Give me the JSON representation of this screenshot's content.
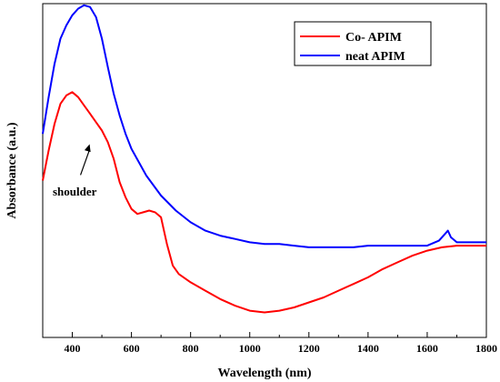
{
  "chart_data": {
    "type": "line",
    "title": "",
    "xlabel": "Wavelength (nm)",
    "ylabel": "Absorbance (a.u.)",
    "xlim": [
      300,
      1800
    ],
    "ylim": [
      0,
      1
    ],
    "x_ticks": [
      400,
      600,
      800,
      1000,
      1200,
      1400,
      1600,
      1800
    ],
    "x_tick_labels": [
      "400",
      "600",
      "800",
      "1000",
      "1200",
      "1400",
      "1600",
      "1800"
    ],
    "y_tick_labels_shown": false,
    "grid": false,
    "legend": {
      "position": "top-right"
    },
    "annotation": {
      "text": "shoulder",
      "arrow_target": [
        480,
        0.59
      ]
    },
    "series": [
      {
        "name": "Co- APIM",
        "color": "#ff0000",
        "x": [
          300,
          320,
          340,
          360,
          380,
          400,
          420,
          440,
          460,
          480,
          500,
          520,
          540,
          560,
          580,
          600,
          620,
          640,
          660,
          680,
          700,
          720,
          740,
          760,
          800,
          850,
          900,
          950,
          1000,
          1050,
          1100,
          1150,
          1200,
          1250,
          1300,
          1350,
          1400,
          1450,
          1500,
          1550,
          1600,
          1650,
          1700,
          1750,
          1800
        ],
        "y": [
          0.47,
          0.56,
          0.64,
          0.7,
          0.725,
          0.735,
          0.72,
          0.695,
          0.67,
          0.645,
          0.62,
          0.585,
          0.535,
          0.465,
          0.42,
          0.385,
          0.37,
          0.375,
          0.38,
          0.375,
          0.36,
          0.28,
          0.215,
          0.19,
          0.165,
          0.14,
          0.115,
          0.095,
          0.08,
          0.075,
          0.08,
          0.09,
          0.105,
          0.12,
          0.14,
          0.16,
          0.18,
          0.205,
          0.225,
          0.245,
          0.26,
          0.27,
          0.275,
          0.275,
          0.275
        ]
      },
      {
        "name": "neat APIM",
        "color": "#0000ff",
        "x": [
          300,
          320,
          340,
          360,
          380,
          400,
          420,
          440,
          460,
          480,
          500,
          520,
          540,
          560,
          580,
          600,
          650,
          700,
          750,
          800,
          850,
          900,
          950,
          1000,
          1050,
          1100,
          1150,
          1200,
          1250,
          1300,
          1350,
          1400,
          1450,
          1500,
          1550,
          1600,
          1640,
          1660,
          1670,
          1680,
          1700,
          1750,
          1800
        ],
        "y": [
          0.61,
          0.72,
          0.82,
          0.895,
          0.935,
          0.965,
          0.985,
          0.995,
          0.99,
          0.96,
          0.895,
          0.81,
          0.73,
          0.665,
          0.61,
          0.565,
          0.485,
          0.425,
          0.38,
          0.345,
          0.32,
          0.305,
          0.295,
          0.285,
          0.28,
          0.28,
          0.275,
          0.27,
          0.27,
          0.27,
          0.27,
          0.275,
          0.275,
          0.275,
          0.275,
          0.275,
          0.29,
          0.31,
          0.32,
          0.3,
          0.285,
          0.285,
          0.285
        ]
      }
    ]
  }
}
